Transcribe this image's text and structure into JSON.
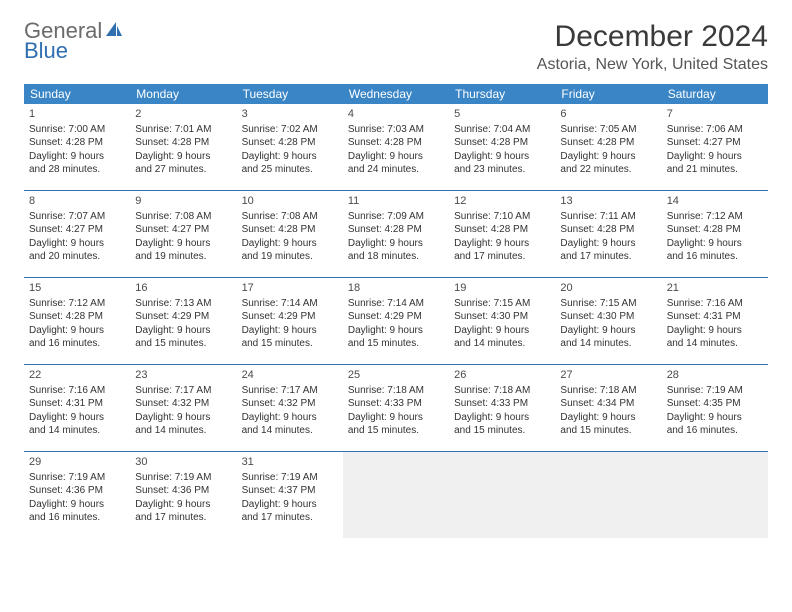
{
  "logo": {
    "top": "General",
    "bottom": "Blue"
  },
  "title": "December 2024",
  "location": "Astoria, New York, United States",
  "colors": {
    "header_bg": "#3a85c6",
    "divider": "#2f6fb0",
    "logo_gray": "#6b6b6b",
    "logo_blue": "#2f6fb0",
    "empty_cell": "#f0f0f0",
    "text": "#333333"
  },
  "day_headers": [
    "Sunday",
    "Monday",
    "Tuesday",
    "Wednesday",
    "Thursday",
    "Friday",
    "Saturday"
  ],
  "weeks": [
    [
      {
        "n": "1",
        "sr": "Sunrise: 7:00 AM",
        "ss": "Sunset: 4:28 PM",
        "d1": "Daylight: 9 hours",
        "d2": "and 28 minutes."
      },
      {
        "n": "2",
        "sr": "Sunrise: 7:01 AM",
        "ss": "Sunset: 4:28 PM",
        "d1": "Daylight: 9 hours",
        "d2": "and 27 minutes."
      },
      {
        "n": "3",
        "sr": "Sunrise: 7:02 AM",
        "ss": "Sunset: 4:28 PM",
        "d1": "Daylight: 9 hours",
        "d2": "and 25 minutes."
      },
      {
        "n": "4",
        "sr": "Sunrise: 7:03 AM",
        "ss": "Sunset: 4:28 PM",
        "d1": "Daylight: 9 hours",
        "d2": "and 24 minutes."
      },
      {
        "n": "5",
        "sr": "Sunrise: 7:04 AM",
        "ss": "Sunset: 4:28 PM",
        "d1": "Daylight: 9 hours",
        "d2": "and 23 minutes."
      },
      {
        "n": "6",
        "sr": "Sunrise: 7:05 AM",
        "ss": "Sunset: 4:28 PM",
        "d1": "Daylight: 9 hours",
        "d2": "and 22 minutes."
      },
      {
        "n": "7",
        "sr": "Sunrise: 7:06 AM",
        "ss": "Sunset: 4:27 PM",
        "d1": "Daylight: 9 hours",
        "d2": "and 21 minutes."
      }
    ],
    [
      {
        "n": "8",
        "sr": "Sunrise: 7:07 AM",
        "ss": "Sunset: 4:27 PM",
        "d1": "Daylight: 9 hours",
        "d2": "and 20 minutes."
      },
      {
        "n": "9",
        "sr": "Sunrise: 7:08 AM",
        "ss": "Sunset: 4:27 PM",
        "d1": "Daylight: 9 hours",
        "d2": "and 19 minutes."
      },
      {
        "n": "10",
        "sr": "Sunrise: 7:08 AM",
        "ss": "Sunset: 4:28 PM",
        "d1": "Daylight: 9 hours",
        "d2": "and 19 minutes."
      },
      {
        "n": "11",
        "sr": "Sunrise: 7:09 AM",
        "ss": "Sunset: 4:28 PM",
        "d1": "Daylight: 9 hours",
        "d2": "and 18 minutes."
      },
      {
        "n": "12",
        "sr": "Sunrise: 7:10 AM",
        "ss": "Sunset: 4:28 PM",
        "d1": "Daylight: 9 hours",
        "d2": "and 17 minutes."
      },
      {
        "n": "13",
        "sr": "Sunrise: 7:11 AM",
        "ss": "Sunset: 4:28 PM",
        "d1": "Daylight: 9 hours",
        "d2": "and 17 minutes."
      },
      {
        "n": "14",
        "sr": "Sunrise: 7:12 AM",
        "ss": "Sunset: 4:28 PM",
        "d1": "Daylight: 9 hours",
        "d2": "and 16 minutes."
      }
    ],
    [
      {
        "n": "15",
        "sr": "Sunrise: 7:12 AM",
        "ss": "Sunset: 4:28 PM",
        "d1": "Daylight: 9 hours",
        "d2": "and 16 minutes."
      },
      {
        "n": "16",
        "sr": "Sunrise: 7:13 AM",
        "ss": "Sunset: 4:29 PM",
        "d1": "Daylight: 9 hours",
        "d2": "and 15 minutes."
      },
      {
        "n": "17",
        "sr": "Sunrise: 7:14 AM",
        "ss": "Sunset: 4:29 PM",
        "d1": "Daylight: 9 hours",
        "d2": "and 15 minutes."
      },
      {
        "n": "18",
        "sr": "Sunrise: 7:14 AM",
        "ss": "Sunset: 4:29 PM",
        "d1": "Daylight: 9 hours",
        "d2": "and 15 minutes."
      },
      {
        "n": "19",
        "sr": "Sunrise: 7:15 AM",
        "ss": "Sunset: 4:30 PM",
        "d1": "Daylight: 9 hours",
        "d2": "and 14 minutes."
      },
      {
        "n": "20",
        "sr": "Sunrise: 7:15 AM",
        "ss": "Sunset: 4:30 PM",
        "d1": "Daylight: 9 hours",
        "d2": "and 14 minutes."
      },
      {
        "n": "21",
        "sr": "Sunrise: 7:16 AM",
        "ss": "Sunset: 4:31 PM",
        "d1": "Daylight: 9 hours",
        "d2": "and 14 minutes."
      }
    ],
    [
      {
        "n": "22",
        "sr": "Sunrise: 7:16 AM",
        "ss": "Sunset: 4:31 PM",
        "d1": "Daylight: 9 hours",
        "d2": "and 14 minutes."
      },
      {
        "n": "23",
        "sr": "Sunrise: 7:17 AM",
        "ss": "Sunset: 4:32 PM",
        "d1": "Daylight: 9 hours",
        "d2": "and 14 minutes."
      },
      {
        "n": "24",
        "sr": "Sunrise: 7:17 AM",
        "ss": "Sunset: 4:32 PM",
        "d1": "Daylight: 9 hours",
        "d2": "and 14 minutes."
      },
      {
        "n": "25",
        "sr": "Sunrise: 7:18 AM",
        "ss": "Sunset: 4:33 PM",
        "d1": "Daylight: 9 hours",
        "d2": "and 15 minutes."
      },
      {
        "n": "26",
        "sr": "Sunrise: 7:18 AM",
        "ss": "Sunset: 4:33 PM",
        "d1": "Daylight: 9 hours",
        "d2": "and 15 minutes."
      },
      {
        "n": "27",
        "sr": "Sunrise: 7:18 AM",
        "ss": "Sunset: 4:34 PM",
        "d1": "Daylight: 9 hours",
        "d2": "and 15 minutes."
      },
      {
        "n": "28",
        "sr": "Sunrise: 7:19 AM",
        "ss": "Sunset: 4:35 PM",
        "d1": "Daylight: 9 hours",
        "d2": "and 16 minutes."
      }
    ],
    [
      {
        "n": "29",
        "sr": "Sunrise: 7:19 AM",
        "ss": "Sunset: 4:36 PM",
        "d1": "Daylight: 9 hours",
        "d2": "and 16 minutes."
      },
      {
        "n": "30",
        "sr": "Sunrise: 7:19 AM",
        "ss": "Sunset: 4:36 PM",
        "d1": "Daylight: 9 hours",
        "d2": "and 17 minutes."
      },
      {
        "n": "31",
        "sr": "Sunrise: 7:19 AM",
        "ss": "Sunset: 4:37 PM",
        "d1": "Daylight: 9 hours",
        "d2": "and 17 minutes."
      },
      {
        "empty": true
      },
      {
        "empty": true
      },
      {
        "empty": true
      },
      {
        "empty": true
      }
    ]
  ]
}
